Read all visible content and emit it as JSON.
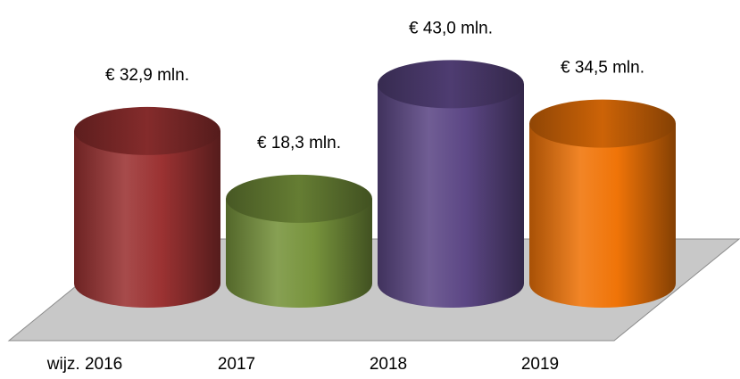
{
  "chart_data": {
    "type": "cylinder",
    "categories": [
      "wijz. 2016",
      "2017",
      "2018",
      "2019"
    ],
    "series": [
      {
        "values": [
          32.9,
          18.3,
          43.0,
          34.5
        ],
        "value_labels": [
          "€ 32,9 mln.",
          "€ 18,3 mln.",
          "€ 43,0 mln.",
          "€ 34,5 mln."
        ],
        "colors": [
          "#9b3232",
          "#77933c",
          "#5c4785",
          "#f07408"
        ]
      }
    ]
  }
}
